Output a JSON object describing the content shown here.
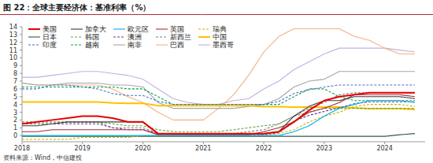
{
  "chart_data": {
    "type": "line",
    "title": "图 22：全球主要经济体：基准利率（%）",
    "source": "资料来源：Wind，中信建投",
    "x": [
      2018,
      2018.25,
      2018.5,
      2018.75,
      2019,
      2019.25,
      2019.5,
      2019.75,
      2020,
      2020.25,
      2020.5,
      2020.75,
      2021,
      2021.25,
      2021.5,
      2021.75,
      2022,
      2022.25,
      2022.5,
      2022.75,
      2023,
      2023.25,
      2023.5,
      2023.75,
      2024,
      2024.25,
      2024.5
    ],
    "xlim": [
      2018,
      2024.67
    ],
    "xticks": [
      2018,
      2019,
      2020,
      2021,
      2022,
      2023,
      2024
    ],
    "ylim": [
      -0.8,
      14
    ],
    "yticks": [
      0,
      1,
      2,
      3,
      4,
      5,
      6,
      7,
      8,
      9,
      10,
      11,
      12,
      13,
      14
    ],
    "grid": false,
    "legend": "top-left",
    "series": [
      {
        "name": "美国",
        "color": "#e60000",
        "line_style": "solid",
        "values": [
          1.5,
          1.75,
          2,
          2.25,
          2.5,
          2.5,
          2.25,
          1.75,
          1.75,
          0.25,
          0.25,
          0.25,
          0.25,
          0.25,
          0.25,
          0.25,
          0.25,
          0.5,
          1.75,
          3.25,
          4.5,
          5,
          5.25,
          5.5,
          5.5,
          5.5,
          5.5
        ]
      },
      {
        "name": "加拿大",
        "color": "#3a3a3a",
        "line_style": "solid",
        "values": [
          1.25,
          1.25,
          1.5,
          1.75,
          1.75,
          1.75,
          1.75,
          1.75,
          1.75,
          0.25,
          0.25,
          0.25,
          0.25,
          0.25,
          0.25,
          0.25,
          0.25,
          0.5,
          2.5,
          3.75,
          4.5,
          4.5,
          5,
          5,
          5,
          5,
          4.75
        ]
      },
      {
        "name": "欧元区",
        "color": "#00b0f0",
        "line_style": "solid",
        "values": [
          0,
          0,
          0,
          0,
          0,
          0,
          0,
          0,
          0,
          0,
          0,
          0,
          0,
          0,
          0,
          0,
          0,
          0,
          0.5,
          1.25,
          2.5,
          3.5,
          4,
          4.5,
          4.5,
          4.5,
          4.25
        ]
      },
      {
        "name": "英国",
        "color": "#a0303a",
        "line_style": "solid",
        "values": [
          0.5,
          0.5,
          0.75,
          0.75,
          0.75,
          0.75,
          0.75,
          0.75,
          0.75,
          0.1,
          0.1,
          0.1,
          0.1,
          0.1,
          0.1,
          0.1,
          0.5,
          1,
          1.75,
          3,
          3.5,
          4.25,
          5.25,
          5.25,
          5.25,
          5.25,
          5
        ]
      },
      {
        "name": "瑞典",
        "color": "#d4b000",
        "line_style": "dashed",
        "values": [
          -0.5,
          -0.5,
          -0.5,
          -0.5,
          -0.25,
          -0.25,
          -0.25,
          -0.25,
          0,
          0,
          0,
          0,
          0,
          0,
          0,
          0,
          0,
          0.25,
          0.75,
          1.75,
          2.5,
          3,
          3.75,
          4,
          4,
          4,
          3.75
        ]
      },
      {
        "name": "日本",
        "color": "#2e5e3e",
        "line_style": "solid",
        "values": [
          -0.1,
          -0.1,
          -0.1,
          -0.1,
          -0.1,
          -0.1,
          -0.1,
          -0.1,
          -0.1,
          -0.1,
          -0.1,
          -0.1,
          -0.1,
          -0.1,
          -0.1,
          -0.1,
          -0.1,
          -0.1,
          -0.1,
          -0.1,
          -0.1,
          -0.1,
          -0.1,
          -0.1,
          -0.1,
          0.1,
          0.25
        ]
      },
      {
        "name": "韩国",
        "color": "#5fa83a",
        "line_style": "dashed",
        "values": [
          1.5,
          1.5,
          1.5,
          1.75,
          1.75,
          1.75,
          1.5,
          1.25,
          1.25,
          0.75,
          0.5,
          0.5,
          0.5,
          0.5,
          0.75,
          1,
          1.25,
          1.5,
          2.5,
          3,
          3.5,
          3.5,
          3.5,
          3.5,
          3.5,
          3.5,
          3.5
        ]
      },
      {
        "name": "澳洲",
        "color": "#7030a0",
        "line_style": "dashed",
        "values": [
          1.5,
          1.5,
          1.5,
          1.5,
          1.5,
          1.5,
          1,
          0.75,
          0.75,
          0.25,
          0.25,
          0.1,
          0.1,
          0.1,
          0.1,
          0.1,
          0.1,
          0.35,
          1.85,
          2.6,
          3.1,
          3.6,
          4.1,
          4.35,
          4.35,
          4.35,
          4.35
        ]
      },
      {
        "name": "新西兰",
        "color": "#808080",
        "line_style": "dashed",
        "values": [
          1.75,
          1.75,
          1.75,
          1.75,
          1.75,
          1.75,
          1,
          1,
          1,
          0.25,
          0.25,
          0.25,
          0.25,
          0.25,
          0.25,
          0.5,
          0.75,
          1.5,
          2.5,
          3.5,
          4.25,
          5.25,
          5.5,
          5.5,
          5.5,
          5.5,
          5.5
        ]
      },
      {
        "name": "中国",
        "color": "#ffc000",
        "line_style": "solid",
        "values": [
          4.31,
          4.31,
          4.31,
          4.31,
          4.31,
          4.31,
          4.2,
          4.15,
          4.15,
          3.85,
          3.85,
          3.85,
          3.85,
          3.85,
          3.85,
          3.85,
          3.7,
          3.7,
          3.65,
          3.65,
          3.65,
          3.65,
          3.55,
          3.45,
          3.45,
          3.45,
          3.35
        ]
      },
      {
        "name": "印度",
        "color": "#4472c4",
        "line_style": "dashed",
        "values": [
          6,
          6,
          6.5,
          6.5,
          6.25,
          6,
          5.4,
          5.15,
          5.15,
          4.4,
          4,
          4,
          4,
          4,
          4,
          4,
          4,
          4.4,
          5.4,
          5.9,
          6.25,
          6.5,
          6.5,
          6.5,
          6.5,
          6.5,
          6.5
        ]
      },
      {
        "name": "越南",
        "color": "#00a050",
        "line_style": "dashed",
        "values": [
          6.25,
          6.25,
          6.25,
          6.25,
          6.25,
          6.25,
          6.25,
          6,
          6,
          5,
          4,
          4,
          4,
          4,
          4,
          4,
          4,
          4,
          5,
          6,
          6,
          5,
          4.5,
          4.5,
          4.5,
          4.5,
          4.5
        ]
      },
      {
        "name": "南非",
        "color": "#a6a6a6",
        "line_style": "solid",
        "values": [
          6.75,
          6.5,
          6.5,
          6.75,
          6.75,
          6.75,
          6.5,
          6.5,
          6.25,
          4.25,
          3.5,
          3.5,
          3.5,
          3.5,
          3.5,
          3.75,
          4,
          4.75,
          6.25,
          7,
          7.25,
          8.25,
          8.25,
          8.25,
          8.25,
          8.25,
          8.25
        ]
      },
      {
        "name": "巴西",
        "color": "#f4b183",
        "line_style": "solid",
        "values": [
          6.75,
          6.5,
          6.5,
          6.5,
          6.5,
          6.5,
          6,
          5,
          4.25,
          3,
          2,
          2,
          2,
          3.5,
          5.25,
          7.75,
          10.75,
          12.75,
          13.75,
          13.75,
          13.75,
          13.75,
          12.75,
          12.25,
          11.25,
          10.5,
          10.5
        ]
      },
      {
        "name": "墨西哥",
        "color": "#c3b0e2",
        "line_style": "solid",
        "values": [
          7.5,
          7.5,
          7.75,
          8,
          8.25,
          8.25,
          8,
          7.75,
          7.25,
          6,
          4.75,
          4.25,
          4,
          4,
          4.5,
          4.75,
          6,
          7,
          8.5,
          9.5,
          10.5,
          11.25,
          11.25,
          11.25,
          11.25,
          11,
          10.75
        ]
      }
    ]
  }
}
